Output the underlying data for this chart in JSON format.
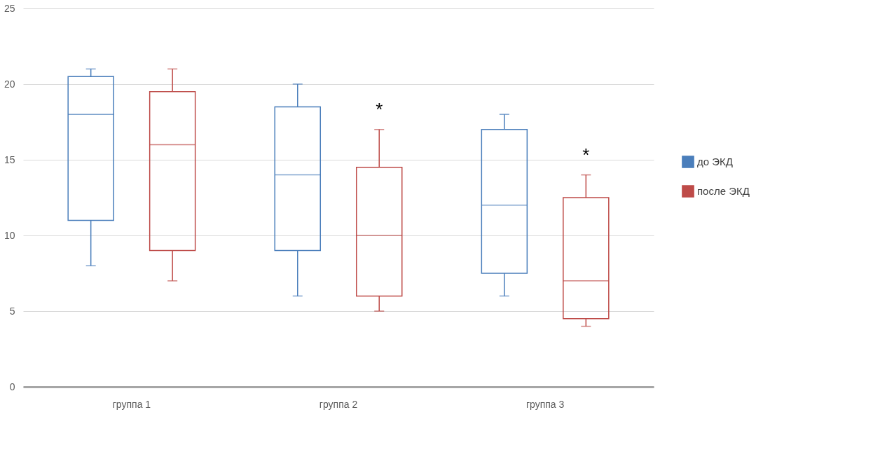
{
  "chart_data": {
    "type": "box",
    "categories": [
      "группа 1",
      "группа 2",
      "группа 3"
    ],
    "series": [
      {
        "name": "до ЭКД",
        "color": "#4a7ebb",
        "boxes": [
          {
            "low": 8,
            "q1": 11,
            "median": 18,
            "q3": 20.5,
            "high": 21
          },
          {
            "low": 6,
            "q1": 9,
            "median": 14,
            "q3": 18.5,
            "high": 20
          },
          {
            "low": 6,
            "q1": 7.5,
            "median": 12,
            "q3": 17,
            "high": 18
          }
        ]
      },
      {
        "name": "после ЭКД",
        "color": "#be4b48",
        "boxes": [
          {
            "low": 7,
            "q1": 9,
            "median": 16,
            "q3": 19.5,
            "high": 21
          },
          {
            "low": 5,
            "q1": 6,
            "median": 10,
            "q3": 14.5,
            "high": 17
          },
          {
            "low": 4,
            "q1": 4.5,
            "median": 7,
            "q3": 12.5,
            "high": 14
          }
        ]
      }
    ],
    "ylim": [
      0,
      25
    ],
    "yticks": [
      0,
      5,
      10,
      15,
      20,
      25
    ],
    "grid": "y",
    "legend": "right",
    "annotations": [
      "*",
      "*"
    ]
  }
}
